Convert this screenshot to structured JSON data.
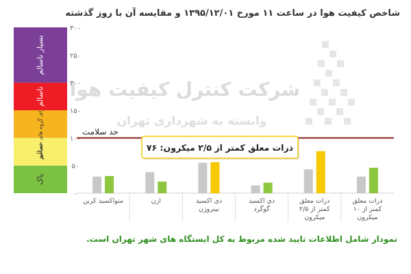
{
  "header": {
    "title": "شاخص کیفیت هوا در ساعت ۱۱ مورخ ۱۳۹۵/۱۲/۰۱ و مقایسه آن با روز گذشته",
    "menu_icon": "hamburger-menu-icon"
  },
  "watermark": {
    "line1": "شرکت کنترل کیفیت هوا",
    "line2": "وابسته به شهرداری تهران"
  },
  "footer": {
    "note": "نمودار شامل اطلاعات تایید شده مربوط به کل ایستگاه های شهر تهران است."
  },
  "chart_data": {
    "type": "bar",
    "title": "شاخص کیفیت هوا در ساعت ۱۱ مورخ ۱۳۹۵/۱۲/۰۱ و مقایسه آن با روز گذشته",
    "categories": [
      "متواکسید کربن",
      "ازن",
      "دی اکسید نیتروژن",
      "دی اکسید گوگرد",
      "ذرات معلق کمتر از ۲/۵ میکرون",
      "ذرات معلق کمتر از ۱۰ میکرون"
    ],
    "category_lines": [
      [
        "متواکسید کربن"
      ],
      [
        "ازن"
      ],
      [
        "دی اکسید",
        "نیتروژن"
      ],
      [
        "دی اکسید",
        "گوگرد"
      ],
      [
        "ذرات معلق",
        "کمتر از ۲/۵",
        "میکرون"
      ],
      [
        "ذرات معلق",
        "کمتر از ۱۰",
        "میکرون"
      ]
    ],
    "series": [
      {
        "values": [
          30,
          38,
          55,
          14,
          43,
          30
        ],
        "color": "#c8c8c8"
      },
      {
        "values": [
          31,
          21,
          56,
          19,
          76,
          46
        ],
        "colors": [
          "#8dc63f",
          "#8dc63f",
          "#f5c800",
          "#8dc63f",
          "#f5c800",
          "#8dc63f"
        ]
      }
    ],
    "ylim": [
      0,
      300
    ],
    "yticks": [
      "۰",
      "۵۰",
      "۱۰۰",
      "۱۵۰",
      "۲۰۰",
      "۲۵۰",
      "۳۰۰"
    ],
    "ytick_values": [
      0,
      50,
      100,
      150,
      200,
      250,
      300
    ],
    "threshold": {
      "value": 100,
      "label": "حد سلامت",
      "color": "#8b1a1a"
    },
    "tooltip": {
      "text": "ذرات معلق کمتر از ۲/۵ میکرون: ۷۶",
      "category_index": 4
    },
    "bands": [
      {
        "label": "پاک",
        "from": 0,
        "to": 50,
        "color": "#7cc242"
      },
      {
        "label": "سالم",
        "from": 50,
        "to": 100,
        "color": "#f8ef6d"
      },
      {
        "label": "ناسالم برای گروه های حساس",
        "from": 100,
        "to": 150,
        "color": "#f6b51e"
      },
      {
        "label": "ناسالم",
        "from": 150,
        "to": 200,
        "color": "#ee1c24"
      },
      {
        "label": "بسیار ناسالم",
        "from": 200,
        "to": 300,
        "color": "#7b3f98"
      }
    ],
    "grid": false,
    "legend": "none"
  }
}
